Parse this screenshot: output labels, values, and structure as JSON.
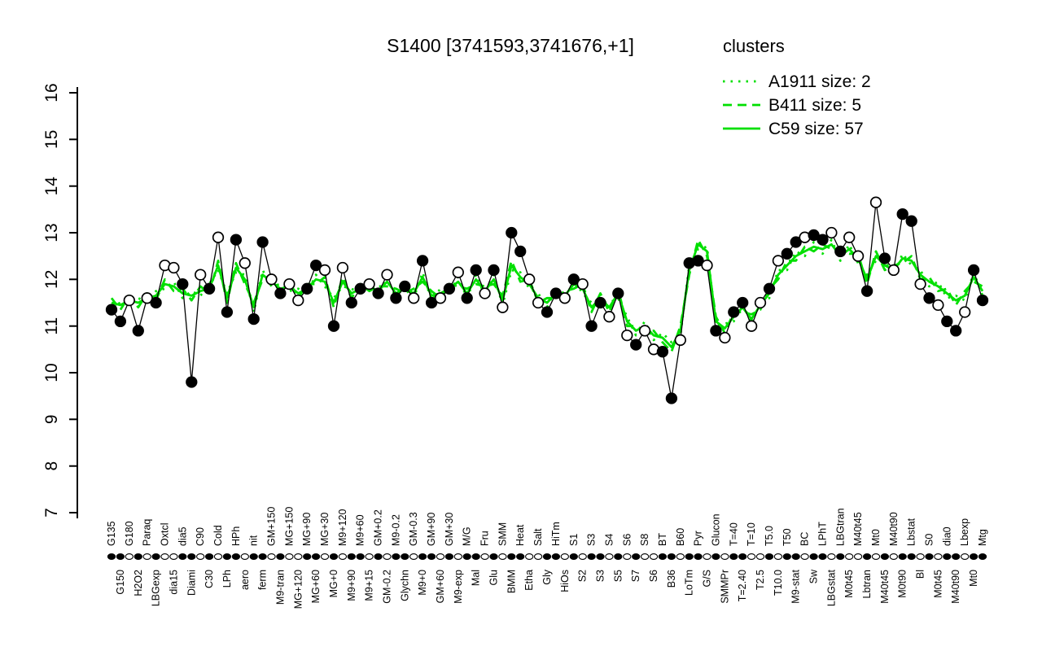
{
  "chart_data": {
    "type": "line",
    "title": "S1400 [3741593,3741676,+1]",
    "xlabel": "",
    "ylabel": "",
    "ylim": [
      7,
      16
    ],
    "y_ticks": [
      7,
      8,
      9,
      10,
      11,
      12,
      13,
      14,
      15,
      16
    ],
    "grid": false,
    "colors": {
      "cluster": "#00DF00",
      "gene": "#000000",
      "background": "#ffffff"
    },
    "legend": {
      "title": "clusters",
      "position": "top-right",
      "items": [
        {
          "label": "A1911 size: 2",
          "style": "dotted"
        },
        {
          "label": "B411 size: 5",
          "style": "dashed"
        },
        {
          "label": "C59 size: 57",
          "style": "solid"
        }
      ]
    },
    "categories": [
      "G135",
      "G150",
      "G180",
      "H2O2",
      "Paraq",
      "LBGexp",
      "Oxtcl",
      "dia15",
      "dia5",
      "Diami",
      "C90",
      "C30",
      "Cold",
      "LPh",
      "HPh",
      "aero",
      "nit",
      "ferm",
      "GM+150",
      "M9-tran",
      "MG+150",
      "MG+120",
      "MG+90",
      "MG+60",
      "MG+30",
      "MG+0",
      "M9+120",
      "M9+90",
      "M9+60",
      "M9+15",
      "GM+0.2",
      "GM-0.2",
      "M9-0.2",
      "Glychn",
      "GM-0.3",
      "M9+0",
      "GM+90",
      "GM+60",
      "GM+30",
      "M9-exp",
      "M/G",
      "Mal",
      "Fru",
      "Glu",
      "SMM",
      "BMM",
      "Heat",
      "Etha",
      "Salt",
      "Gly",
      "HiTm",
      "HiOs",
      "S1",
      "S2",
      "S3",
      "S3",
      "S4",
      "S5",
      "S6",
      "S7",
      "S8",
      "S6",
      "BT",
      "B36",
      "B60",
      "LoTm",
      "Pyr",
      "G/S",
      "Glucon",
      "SMMPr",
      "T=40",
      "T=2.40",
      "T=10",
      "T2.5",
      "T5.0",
      "T10.0",
      "T50",
      "M9-stat",
      "BC",
      "Sw",
      "LPhT",
      "LBGstat",
      "LBGtran",
      "M0t45",
      "M40t45",
      "Lbtran",
      "Mt0",
      "M40t45",
      "M40t90",
      "M0t90",
      "Lbstat",
      "Bl",
      "S0",
      "M0t45",
      "dia0",
      "M40t90",
      "Lbexp",
      "Mt0",
      "Mtg"
    ],
    "markers_filled": [
      1,
      1,
      0,
      1,
      0,
      1,
      0,
      0,
      1,
      1,
      0,
      1,
      0,
      1,
      1,
      0,
      1,
      1,
      0,
      1,
      0,
      0,
      1,
      1,
      0,
      1,
      0,
      1,
      1,
      0,
      1,
      0,
      1,
      1,
      0,
      1,
      1,
      0,
      1,
      0,
      1,
      1,
      0,
      1,
      0,
      1,
      1,
      0,
      0,
      1,
      1,
      0,
      1,
      0,
      1,
      1,
      0,
      1,
      0,
      1,
      0,
      0,
      1,
      1,
      0,
      1,
      1,
      0,
      1,
      0,
      1,
      1,
      0,
      0,
      1,
      0,
      1,
      1,
      0,
      1,
      1,
      0,
      1,
      0,
      0,
      1,
      0,
      1,
      0,
      1,
      1,
      0,
      1,
      0,
      1,
      1,
      0,
      1,
      1
    ],
    "series": [
      {
        "name": "A1911",
        "role": "cluster-mean",
        "style": "dotted",
        "values": [
          11.4,
          11.5,
          11.45,
          11.6,
          11.5,
          11.75,
          11.8,
          11.95,
          11.6,
          11.75,
          11.65,
          11.9,
          12.2,
          11.7,
          12.15,
          12.1,
          11.3,
          12.2,
          11.85,
          11.9,
          11.75,
          11.8,
          11.7,
          12.1,
          11.85,
          11.6,
          11.85,
          11.8,
          11.7,
          11.95,
          11.65,
          12.05,
          11.6,
          11.9,
          11.6,
          12.15,
          11.55,
          11.8,
          11.7,
          12.05,
          11.6,
          12.1,
          11.65,
          12.1,
          11.45,
          12.2,
          12.15,
          11.8,
          11.7,
          11.4,
          11.8,
          11.55,
          12.0,
          11.7,
          11.5,
          11.5,
          11.5,
          11.6,
          11.2,
          10.8,
          11.1,
          10.7,
          10.85,
          10.65,
          10.8,
          12.3,
          12.65,
          12.7,
          11.0,
          11.05,
          11.1,
          11.5,
          11.05,
          11.55,
          11.6,
          12.2,
          12.2,
          12.6,
          12.5,
          12.8,
          12.55,
          12.85,
          12.4,
          12.75,
          12.35,
          12.1,
          12.4,
          12.4,
          12.1,
          12.55,
          12.3,
          12.2,
          11.85,
          11.95,
          11.6,
          11.65,
          11.55,
          12.15,
          11.65
        ]
      },
      {
        "name": "B411",
        "role": "cluster-mean",
        "style": "dashed",
        "values": [
          11.6,
          11.35,
          11.65,
          11.4,
          11.7,
          11.55,
          12.0,
          11.75,
          11.8,
          11.55,
          11.85,
          11.7,
          12.4,
          11.5,
          12.35,
          11.9,
          11.5,
          12.0,
          12.05,
          11.7,
          11.95,
          11.6,
          11.9,
          11.9,
          12.05,
          11.4,
          12.05,
          11.6,
          11.9,
          11.75,
          11.85,
          11.85,
          11.8,
          11.7,
          11.8,
          11.95,
          11.75,
          11.6,
          11.9,
          11.85,
          11.8,
          11.9,
          11.85,
          11.9,
          11.65,
          12.4,
          11.95,
          12.0,
          11.5,
          11.6,
          11.6,
          11.75,
          11.8,
          11.9,
          11.3,
          11.7,
          11.3,
          11.8,
          11.0,
          11.0,
          10.9,
          10.9,
          10.65,
          10.45,
          11.0,
          12.1,
          12.85,
          12.5,
          11.2,
          10.85,
          11.3,
          11.3,
          11.25,
          11.35,
          11.8,
          12.0,
          12.4,
          12.4,
          12.7,
          12.6,
          12.75,
          12.65,
          12.6,
          12.55,
          12.55,
          11.9,
          12.6,
          12.2,
          12.3,
          12.35,
          12.5,
          12.0,
          12.05,
          11.75,
          11.8,
          11.45,
          11.75,
          11.95,
          11.85
        ]
      },
      {
        "name": "C59",
        "role": "cluster-mean",
        "style": "solid",
        "values": [
          11.5,
          11.45,
          11.55,
          11.5,
          11.6,
          11.65,
          11.9,
          11.85,
          11.7,
          11.65,
          11.75,
          11.8,
          12.3,
          11.6,
          12.25,
          12.0,
          11.4,
          12.1,
          11.95,
          11.8,
          11.85,
          11.7,
          11.8,
          12.0,
          11.95,
          11.5,
          11.95,
          11.7,
          11.8,
          11.85,
          11.75,
          11.95,
          11.7,
          11.8,
          11.7,
          12.05,
          11.65,
          11.7,
          11.8,
          11.95,
          11.7,
          12.0,
          11.75,
          12.0,
          11.55,
          12.3,
          12.05,
          11.9,
          11.6,
          11.5,
          11.7,
          11.65,
          11.9,
          11.8,
          11.4,
          11.6,
          11.4,
          11.7,
          11.1,
          10.9,
          11.0,
          10.8,
          10.75,
          10.55,
          10.9,
          12.2,
          12.75,
          12.6,
          11.1,
          10.95,
          11.2,
          11.4,
          11.15,
          11.45,
          11.7,
          12.1,
          12.3,
          12.5,
          12.6,
          12.7,
          12.65,
          12.75,
          12.5,
          12.65,
          12.45,
          12.0,
          12.5,
          12.3,
          12.2,
          12.45,
          12.4,
          12.1,
          11.95,
          11.85,
          11.7,
          11.55,
          11.65,
          12.05,
          11.75
        ]
      },
      {
        "name": "S1400",
        "role": "gene-profile",
        "style": "solid-markers",
        "values": [
          11.35,
          11.1,
          11.55,
          10.9,
          11.6,
          11.5,
          12.3,
          12.25,
          11.9,
          9.8,
          12.1,
          11.8,
          12.9,
          11.3,
          12.85,
          12.35,
          11.15,
          12.8,
          12.0,
          11.7,
          11.9,
          11.55,
          11.8,
          12.3,
          12.2,
          11.0,
          12.25,
          11.5,
          11.8,
          11.9,
          11.7,
          12.1,
          11.6,
          11.85,
          11.6,
          12.4,
          11.5,
          11.6,
          11.8,
          12.15,
          11.6,
          12.2,
          11.7,
          12.2,
          11.4,
          13.0,
          12.6,
          12.0,
          11.5,
          11.3,
          11.7,
          11.6,
          12.0,
          11.9,
          11.0,
          11.5,
          11.2,
          11.7,
          10.8,
          10.6,
          10.9,
          10.5,
          10.45,
          9.45,
          10.7,
          12.35,
          12.4,
          12.3,
          10.9,
          10.75,
          11.3,
          11.5,
          11.0,
          11.5,
          11.8,
          12.4,
          12.55,
          12.8,
          12.9,
          12.95,
          12.85,
          13.0,
          12.6,
          12.9,
          12.5,
          11.75,
          13.65,
          12.45,
          12.2,
          13.4,
          13.25,
          11.9,
          11.6,
          11.45,
          11.1,
          10.9,
          11.3,
          12.2,
          11.55
        ]
      }
    ]
  }
}
